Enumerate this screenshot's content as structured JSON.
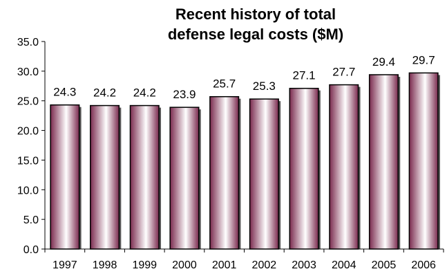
{
  "chart_data": {
    "type": "bar",
    "title_lines": [
      "Recent history of total",
      "defense legal costs ($M)"
    ],
    "categories": [
      "1997",
      "1998",
      "1999",
      "2000",
      "2001",
      "2002",
      "2003",
      "2004",
      "2005",
      "2006"
    ],
    "values": [
      24.3,
      24.2,
      24.2,
      23.9,
      25.7,
      25.3,
      27.1,
      27.7,
      29.4,
      29.7
    ],
    "value_labels": [
      "24.3",
      "24.2",
      "24.2",
      "23.9",
      "25.7",
      "25.3",
      "27.1",
      "27.7",
      "29.4",
      "29.7"
    ],
    "ylim": [
      0,
      35
    ],
    "y_ticks": [
      "0.0",
      "5.0",
      "10.0",
      "15.0",
      "20.0",
      "25.0",
      "30.0",
      "35.0"
    ],
    "xlabel": "",
    "ylabel": "",
    "grid": false,
    "legend": "none",
    "bar_gradient": [
      "#7a2a4e",
      "#ffffff",
      "#7a2a4e"
    ]
  }
}
